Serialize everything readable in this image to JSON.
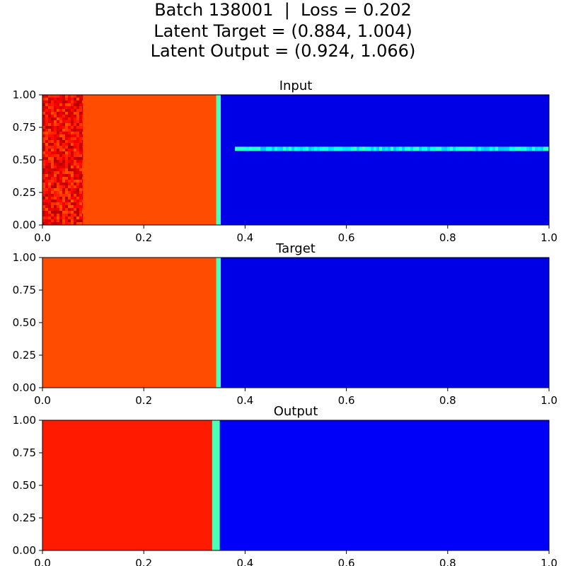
{
  "figure": {
    "title_lines": [
      "Batch 138001  |  Loss = 0.202",
      "Latent Target = (0.884, 1.004)",
      "Latent Output = (0.924, 1.066)"
    ]
  },
  "chart_data": [
    {
      "type": "heatmap",
      "title": "Input",
      "colormap": "jet",
      "xlim": [
        0.0,
        1.0
      ],
      "ylim": [
        0.0,
        1.0
      ],
      "xticks": [
        "0.0",
        "0.2",
        "0.4",
        "0.6",
        "0.8",
        "1.0"
      ],
      "yticks": [
        "0.00",
        "0.25",
        "0.50",
        "0.75",
        "1.00"
      ],
      "grid": false,
      "regions": [
        {
          "x": [
            0.0,
            0.08
          ],
          "value": 0.87,
          "texture": "noisy-dark-red"
        },
        {
          "x": [
            0.08,
            0.343
          ],
          "value": 0.8
        },
        {
          "x": [
            0.343,
            0.352
          ],
          "value": 0.45,
          "note": "front"
        },
        {
          "x": [
            0.352,
            1.0
          ],
          "value": 0.1
        },
        {
          "line_y": 0.585,
          "x": [
            0.38,
            1.0
          ],
          "value": 0.38
        }
      ]
    },
    {
      "type": "heatmap",
      "title": "Target",
      "colormap": "jet",
      "xlim": [
        0.0,
        1.0
      ],
      "ylim": [
        0.0,
        1.0
      ],
      "xticks": [
        "0.0",
        "0.2",
        "0.4",
        "0.6",
        "0.8",
        "1.0"
      ],
      "yticks": [
        "0.00",
        "0.25",
        "0.50",
        "0.75",
        "1.00"
      ],
      "grid": false,
      "regions": [
        {
          "x": [
            0.0,
            0.343
          ],
          "value": 0.8
        },
        {
          "x": [
            0.343,
            0.352
          ],
          "value": 0.45,
          "note": "front"
        },
        {
          "x": [
            0.352,
            1.0
          ],
          "value": 0.1
        }
      ]
    },
    {
      "type": "heatmap",
      "title": "Output",
      "colormap": "jet",
      "xlim": [
        0.0,
        1.0
      ],
      "ylim": [
        0.0,
        1.0
      ],
      "xticks": [
        "0.0",
        "0.2",
        "0.4",
        "0.6",
        "0.8",
        "1.0"
      ],
      "yticks": [
        "0.00",
        "0.25",
        "0.50",
        "0.75",
        "1.00"
      ],
      "grid": false,
      "regions": [
        {
          "x": [
            0.0,
            0.335
          ],
          "value": 0.85
        },
        {
          "x": [
            0.335,
            0.35
          ],
          "value": 0.45,
          "note": "front"
        },
        {
          "x": [
            0.35,
            1.0
          ],
          "value": 0.12
        }
      ]
    }
  ]
}
